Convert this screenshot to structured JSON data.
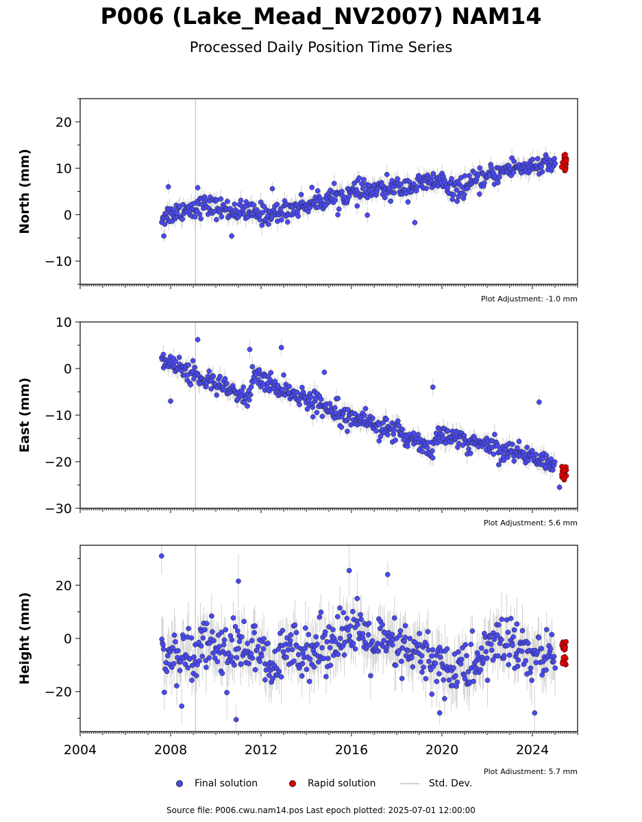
{
  "title": "P006 (Lake_Mead_NV2007) NAM14",
  "subtitle": "Processed Daily Position Time Series",
  "footer": "Source file: P006.cwu.nam14.pos  Last epoch plotted: 2025-07-01 12:00:00",
  "legend": {
    "final": "Final solution",
    "rapid": "Rapid solution",
    "stddev": "Std. Dev."
  },
  "colors": {
    "final": "#4a4af0",
    "rapid": "#e00000",
    "stddev": "#bdbdbd",
    "marker_edge": "#222222",
    "vline": "#cccccc"
  },
  "chart_data": [
    {
      "type": "scatter",
      "ylabel": "North (mm)",
      "ylim": [
        -15,
        25
      ],
      "yticks": [
        -10,
        0,
        10,
        20
      ],
      "xlim": [
        2004,
        2026
      ],
      "xticks": [
        2004,
        2008,
        2012,
        2016,
        2020,
        2024
      ],
      "show_xtick_labels": false,
      "adjustment": "Plot Adjustment: -1.0 mm",
      "vertical_line_x": 2009.1,
      "final_trend": [
        [
          2007.6,
          -0.5
        ],
        [
          2008.5,
          1.0
        ],
        [
          2009.5,
          2.0
        ],
        [
          2010.5,
          1.0
        ],
        [
          2011.5,
          0.5
        ],
        [
          2012.5,
          0.0
        ],
        [
          2013.5,
          1.5
        ],
        [
          2014.5,
          3.0
        ],
        [
          2015.5,
          4.0
        ],
        [
          2016.5,
          5.0
        ],
        [
          2017.5,
          5.5
        ],
        [
          2018.5,
          6.0
        ],
        [
          2019.5,
          7.0
        ],
        [
          2020.1,
          7.5
        ],
        [
          2020.2,
          5.0
        ],
        [
          2021.0,
          6.0
        ],
        [
          2022.0,
          8.0
        ],
        [
          2023.0,
          10.0
        ],
        [
          2024.0,
          10.5
        ],
        [
          2025.0,
          10.5
        ]
      ],
      "final_scatter_mm": 1.5,
      "final_outliers": [
        [
          2007.9,
          6.0
        ],
        [
          2009.2,
          5.8
        ],
        [
          2010.7,
          -4.6
        ],
        [
          2012.5,
          5.6
        ],
        [
          2016.7,
          -0.1
        ],
        [
          2018.8,
          -1.7
        ],
        [
          2007.7,
          -4.6
        ]
      ],
      "rapid_range": [
        2025.3,
        2025.5
      ],
      "rapid_values": [
        9.5,
        13.0
      ]
    },
    {
      "type": "scatter",
      "ylabel": "East (mm)",
      "ylim": [
        -30,
        10
      ],
      "yticks": [
        -30,
        -20,
        -10,
        0,
        10
      ],
      "xlim": [
        2004,
        2026
      ],
      "xticks": [
        2004,
        2008,
        2012,
        2016,
        2020,
        2024
      ],
      "show_xtick_labels": false,
      "adjustment": "Plot Adjustment: 5.6 mm",
      "vertical_line_x": 2009.1,
      "final_trend": [
        [
          2007.6,
          2.0
        ],
        [
          2008.5,
          0.0
        ],
        [
          2009.5,
          -2.5
        ],
        [
          2010.5,
          -4.5
        ],
        [
          2011.5,
          -6.5
        ],
        [
          2011.6,
          -1.5
        ],
        [
          2013.0,
          -4.5
        ],
        [
          2014.5,
          -7.5
        ],
        [
          2016.0,
          -10.0
        ],
        [
          2017.5,
          -13.0
        ],
        [
          2019.0,
          -15.5
        ],
        [
          2019.6,
          -17.5
        ],
        [
          2019.7,
          -14.5
        ],
        [
          2021.0,
          -15.5
        ],
        [
          2022.5,
          -17.0
        ],
        [
          2024.0,
          -19.0
        ],
        [
          2025.0,
          -20.5
        ]
      ],
      "final_scatter_mm": 1.5,
      "final_outliers": [
        [
          2009.2,
          6.2
        ],
        [
          2011.5,
          4.1
        ],
        [
          2012.9,
          4.5
        ],
        [
          2014.8,
          -0.8
        ],
        [
          2019.6,
          -4.0
        ],
        [
          2024.3,
          -7.2
        ],
        [
          2008.0,
          -7.0
        ],
        [
          2025.2,
          -25.5
        ]
      ],
      "rapid_range": [
        2025.3,
        2025.5
      ],
      "rapid_values": [
        -24.0,
        -21.0
      ]
    },
    {
      "type": "scatter",
      "ylabel": "Height (mm)",
      "ylim": [
        -35,
        35
      ],
      "yticks": [
        -20,
        0,
        20
      ],
      "xlim": [
        2004,
        2026
      ],
      "xticks": [
        2004,
        2008,
        2012,
        2016,
        2020,
        2024
      ],
      "show_xtick_labels": true,
      "adjustment": "Plot Adjustment: 5.7 mm",
      "vertical_line_x": 2009.1,
      "final_trend": [
        [
          2007.6,
          -5.0
        ],
        [
          2008.5,
          -8.0
        ],
        [
          2009.5,
          0.0
        ],
        [
          2010.5,
          -5.0
        ],
        [
          2011.5,
          -3.0
        ],
        [
          2012.5,
          -12.0
        ],
        [
          2013.5,
          -2.0
        ],
        [
          2014.5,
          -5.0
        ],
        [
          2015.5,
          3.0
        ],
        [
          2016.5,
          0.0
        ],
        [
          2017.5,
          -3.0
        ],
        [
          2018.5,
          -5.0
        ],
        [
          2019.5,
          -8.0
        ],
        [
          2020.5,
          -12.0
        ],
        [
          2021.5,
          -10.0
        ],
        [
          2022.5,
          0.0
        ],
        [
          2023.5,
          -5.0
        ],
        [
          2024.5,
          -8.0
        ],
        [
          2025.0,
          -7.0
        ]
      ],
      "final_scatter_mm": 7.0,
      "final_outliers": [
        [
          2007.6,
          31.0
        ],
        [
          2015.9,
          25.5
        ],
        [
          2017.6,
          24.0
        ],
        [
          2011.0,
          21.5
        ],
        [
          2010.9,
          -30.5
        ],
        [
          2019.9,
          -28.0
        ],
        [
          2024.1,
          -28.0
        ]
      ],
      "rapid_range": [
        2025.3,
        2025.5
      ],
      "rapid_values": [
        -10.0,
        -1.0
      ]
    }
  ]
}
